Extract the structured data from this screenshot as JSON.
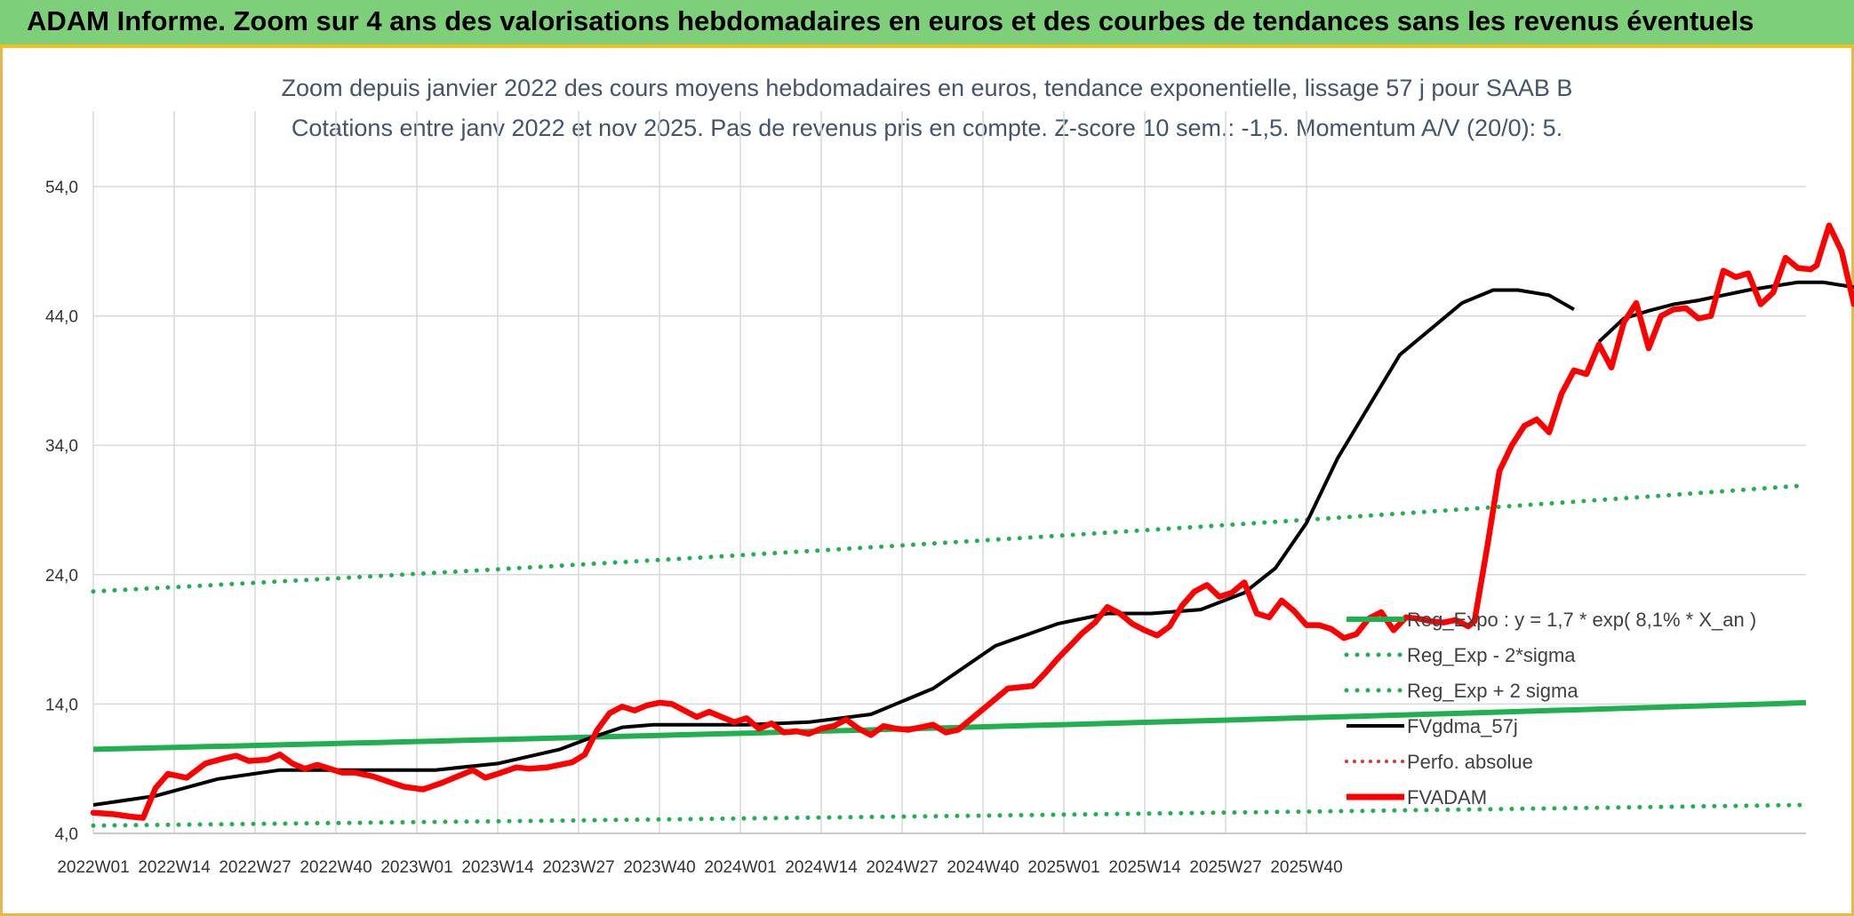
{
  "header": {
    "title": "ADAM Informe. Zoom sur 4 ans des valorisations hebdomadaires en euros et des courbes de tendances sans les revenus éventuels"
  },
  "colors": {
    "banner": "#7dcf7a",
    "banner_border": "#f0c020",
    "reg_expo": "#20b050",
    "fvgdma": "#000000",
    "fvadam": "#ff0000",
    "perfo": "#e03030",
    "title_text": "#44546a"
  },
  "chart_data": {
    "type": "line",
    "title": "Zoom depuis janvier 2022 des cours moyens hebdomadaires en euros, tendance exponentielle, lissage 57 j pour SAAB B",
    "subtitle": "Cotations entre janv 2022 et nov 2025. Pas de revenus pris en compte. Z-score 10 sem.: -1,5. Momentum A/V (20/0): 5.",
    "xlabel": "",
    "ylabel": "",
    "ylim": [
      4,
      54
    ],
    "yticks": [
      "4,0",
      "14,0",
      "24,0",
      "34,0",
      "44,0",
      "54,0"
    ],
    "x_labels": [
      "2022W01",
      "2022W14",
      "2022W27",
      "2022W40",
      "2023W01",
      "2023W14",
      "2023W27",
      "2023W40",
      "2024W01",
      "2024W14",
      "2024W27",
      "2024W40",
      "2025W01",
      "2025W14",
      "2025W27",
      "2025W40"
    ],
    "x_weeks": 205,
    "grid": true,
    "legend_position": "right-middle",
    "legend": [
      {
        "label": "Reg_Expo : y = 1,7 * exp( 8,1% *  X_an )",
        "style": "solid-green"
      },
      {
        "label": "Reg_Exp - 2*sigma",
        "style": "dotted-green"
      },
      {
        "label": "Reg_Exp + 2 sigma",
        "style": "dotted-green"
      },
      {
        "label": "FVgdma_57j",
        "style": "solid-black"
      },
      {
        "label": "Perfo. absolue",
        "style": "dotted-red"
      },
      {
        "label": "FVADAM",
        "style": "solid-red-thick"
      }
    ],
    "series": [
      {
        "name": "Reg_Expo : y = 1,7 * exp( 8,1% *  X_an )",
        "start": 10.5,
        "end": 14.1
      },
      {
        "name": "Reg_Exp - 2*sigma",
        "start": 4.6,
        "end": 6.2
      },
      {
        "name": "Reg_Exp + 2 sigma",
        "start": 22.7,
        "end": 30.9
      },
      {
        "name": "FVgdma_57j",
        "points": [
          [
            0,
            6.2
          ],
          [
            10,
            6.9
          ],
          [
            20,
            8.2
          ],
          [
            30,
            8.9
          ],
          [
            40,
            8.9
          ],
          [
            55,
            8.9
          ],
          [
            65,
            9.4
          ],
          [
            75,
            10.5
          ],
          [
            80,
            11.4
          ],
          [
            85,
            12.2
          ],
          [
            90,
            12.4
          ],
          [
            105,
            12.4
          ],
          [
            115,
            12.6
          ],
          [
            125,
            13.2
          ],
          [
            135,
            15.2
          ],
          [
            145,
            18.5
          ],
          [
            155,
            20.2
          ],
          [
            163,
            21.0
          ],
          [
            170,
            21.0
          ],
          [
            178,
            21.3
          ],
          [
            185,
            22.6
          ],
          [
            190,
            24.5
          ],
          [
            195,
            28.0
          ],
          [
            200,
            33.0
          ],
          [
            205,
            37.0
          ],
          [
            210,
            41.0
          ],
          [
            215,
            43.0
          ],
          [
            220,
            45.0
          ],
          [
            225,
            46.0
          ],
          [
            229,
            46.0
          ],
          [
            234,
            45.6
          ],
          [
            238,
            44.5
          ]
        ]
      },
      {
        "name": "FVADAM",
        "points": [
          [
            0,
            5.6
          ],
          [
            3,
            5.5
          ],
          [
            6,
            5.3
          ],
          [
            8,
            5.2
          ],
          [
            10,
            7.5
          ],
          [
            12,
            8.6
          ],
          [
            15,
            8.3
          ],
          [
            18,
            9.4
          ],
          [
            21,
            9.8
          ],
          [
            23,
            10.0
          ],
          [
            25,
            9.6
          ],
          [
            28,
            9.7
          ],
          [
            30,
            10.1
          ],
          [
            32,
            9.4
          ],
          [
            34,
            9.0
          ],
          [
            36,
            9.3
          ],
          [
            38,
            9.0
          ],
          [
            40,
            8.7
          ],
          [
            42,
            8.7
          ],
          [
            45,
            8.4
          ],
          [
            48,
            7.9
          ],
          [
            50,
            7.6
          ],
          [
            53,
            7.4
          ],
          [
            56,
            7.9
          ],
          [
            59,
            8.5
          ],
          [
            61,
            8.9
          ],
          [
            63,
            8.3
          ],
          [
            65,
            8.6
          ],
          [
            68,
            9.1
          ],
          [
            70,
            9.0
          ],
          [
            73,
            9.1
          ],
          [
            75,
            9.3
          ],
          [
            77,
            9.5
          ],
          [
            79,
            10.1
          ],
          [
            81,
            12.0
          ],
          [
            83,
            13.3
          ],
          [
            85,
            13.8
          ],
          [
            87,
            13.5
          ],
          [
            89,
            13.9
          ],
          [
            91,
            14.1
          ],
          [
            93,
            14.0
          ],
          [
            95,
            13.5
          ],
          [
            97,
            13.0
          ],
          [
            99,
            13.4
          ],
          [
            101,
            13.0
          ],
          [
            103,
            12.6
          ],
          [
            105,
            12.9
          ],
          [
            107,
            12.1
          ],
          [
            109,
            12.5
          ],
          [
            111,
            11.8
          ],
          [
            113,
            11.9
          ],
          [
            115,
            11.7
          ],
          [
            117,
            12.1
          ],
          [
            119,
            12.3
          ],
          [
            121,
            12.8
          ],
          [
            123,
            12.1
          ],
          [
            125,
            11.6
          ],
          [
            127,
            12.3
          ],
          [
            129,
            12.1
          ],
          [
            131,
            12.0
          ],
          [
            133,
            12.2
          ],
          [
            135,
            12.4
          ],
          [
            137,
            11.8
          ],
          [
            139,
            12.0
          ],
          [
            141,
            12.8
          ],
          [
            143,
            13.6
          ],
          [
            145,
            14.4
          ],
          [
            147,
            15.2
          ],
          [
            149,
            15.3
          ],
          [
            151,
            15.4
          ],
          [
            153,
            16.4
          ],
          [
            155,
            17.5
          ],
          [
            157,
            18.5
          ],
          [
            159,
            19.5
          ],
          [
            161,
            20.3
          ],
          [
            163,
            21.5
          ],
          [
            165,
            21.0
          ],
          [
            167,
            20.2
          ],
          [
            169,
            19.7
          ],
          [
            171,
            19.3
          ],
          [
            173,
            20.0
          ],
          [
            175,
            21.6
          ],
          [
            177,
            22.7
          ],
          [
            179,
            23.2
          ],
          [
            181,
            22.3
          ],
          [
            183,
            22.6
          ],
          [
            185,
            23.4
          ],
          [
            187,
            21.0
          ],
          [
            189,
            20.7
          ],
          [
            191,
            22.0
          ],
          [
            193,
            21.2
          ],
          [
            195,
            20.1
          ],
          [
            197,
            20.1
          ],
          [
            199,
            19.8
          ],
          [
            201,
            19.1
          ],
          [
            203,
            19.4
          ],
          [
            205,
            20.6
          ],
          [
            207,
            21.1
          ],
          [
            209,
            19.7
          ],
          [
            211,
            20.7
          ],
          [
            213,
            20.6
          ],
          [
            215,
            20.4
          ],
          [
            217,
            20.3
          ],
          [
            219,
            20.5
          ],
          [
            221,
            20.0
          ],
          [
            222,
            20.4
          ],
          [
            224,
            26.0
          ],
          [
            226,
            32.0
          ],
          [
            228,
            34.0
          ],
          [
            230,
            35.5
          ],
          [
            232,
            36.0
          ],
          [
            234,
            35.0
          ],
          [
            236,
            38.0
          ],
          [
            238,
            39.8
          ]
        ]
      }
    ]
  }
}
